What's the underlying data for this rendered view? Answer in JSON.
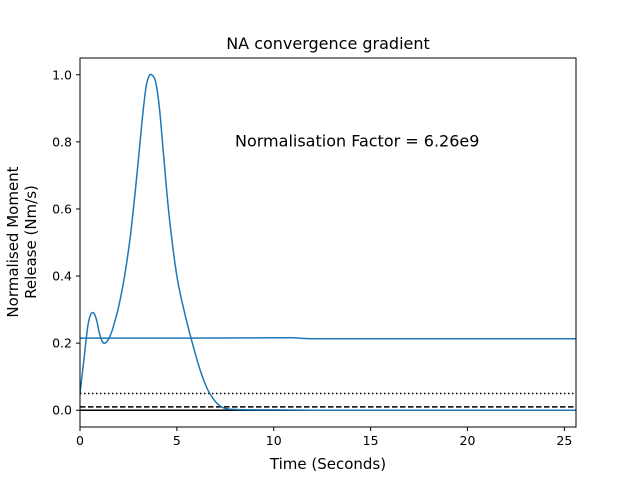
{
  "chart_data": {
    "type": "line",
    "title": "NA convergence gradient",
    "xlabel": "Time (Seconds)",
    "ylabel_line1": "Normalised Moment",
    "ylabel_line2": "Release (Nm/s)",
    "annotation": {
      "text": "Normalisation Factor = 6.26e9",
      "x": 8.0,
      "y": 0.8
    },
    "xlim": [
      0,
      25.6
    ],
    "ylim": [
      -0.05,
      1.05
    ],
    "xticks": [
      0,
      5,
      10,
      15,
      20,
      25
    ],
    "xtick_labels": [
      "0",
      "5",
      "10",
      "15",
      "20",
      "25"
    ],
    "yticks": [
      0.0,
      0.2,
      0.4,
      0.6,
      0.8,
      1.0
    ],
    "ytick_labels": [
      "0.0",
      "0.2",
      "0.4",
      "0.6",
      "0.8",
      "1.0"
    ],
    "grid": false,
    "colors": {
      "series": "#1f77b4",
      "reference": "#000000"
    },
    "series": [
      {
        "style": "solid",
        "x": [
          0.0,
          0.2,
          0.4,
          0.55,
          0.7,
          0.85,
          1.0,
          1.15,
          1.3,
          1.5,
          1.7,
          2.0,
          2.3,
          2.6,
          2.9,
          3.2,
          3.4,
          3.55,
          3.7,
          3.9,
          4.1,
          4.3,
          4.6,
          5.0,
          5.4,
          5.8,
          6.2,
          6.6,
          7.0,
          7.3,
          7.6,
          8.0,
          9.0,
          10.0,
          12.0,
          15.0,
          20.0,
          25.6
        ],
        "y": [
          0.05,
          0.15,
          0.25,
          0.285,
          0.29,
          0.27,
          0.23,
          0.205,
          0.2,
          0.215,
          0.245,
          0.31,
          0.4,
          0.52,
          0.68,
          0.86,
          0.96,
          0.995,
          1.0,
          0.98,
          0.9,
          0.77,
          0.58,
          0.4,
          0.29,
          0.2,
          0.12,
          0.06,
          0.025,
          0.01,
          0.004,
          0.002,
          0.001,
          0.001,
          0.0,
          0.0,
          0.0,
          0.0
        ]
      },
      {
        "style": "solid",
        "x": [
          0.0,
          1.0,
          5.0,
          10.0,
          11.0,
          12.0,
          15.0,
          20.0,
          25.6
        ],
        "y": [
          0.215,
          0.215,
          0.215,
          0.216,
          0.216,
          0.213,
          0.213,
          0.213,
          0.213
        ]
      }
    ],
    "reference_lines": [
      {
        "y": 0.05,
        "style": "dotted"
      },
      {
        "y": 0.01,
        "style": "dashed"
      },
      {
        "y": 0.0,
        "style": "solid"
      }
    ]
  }
}
